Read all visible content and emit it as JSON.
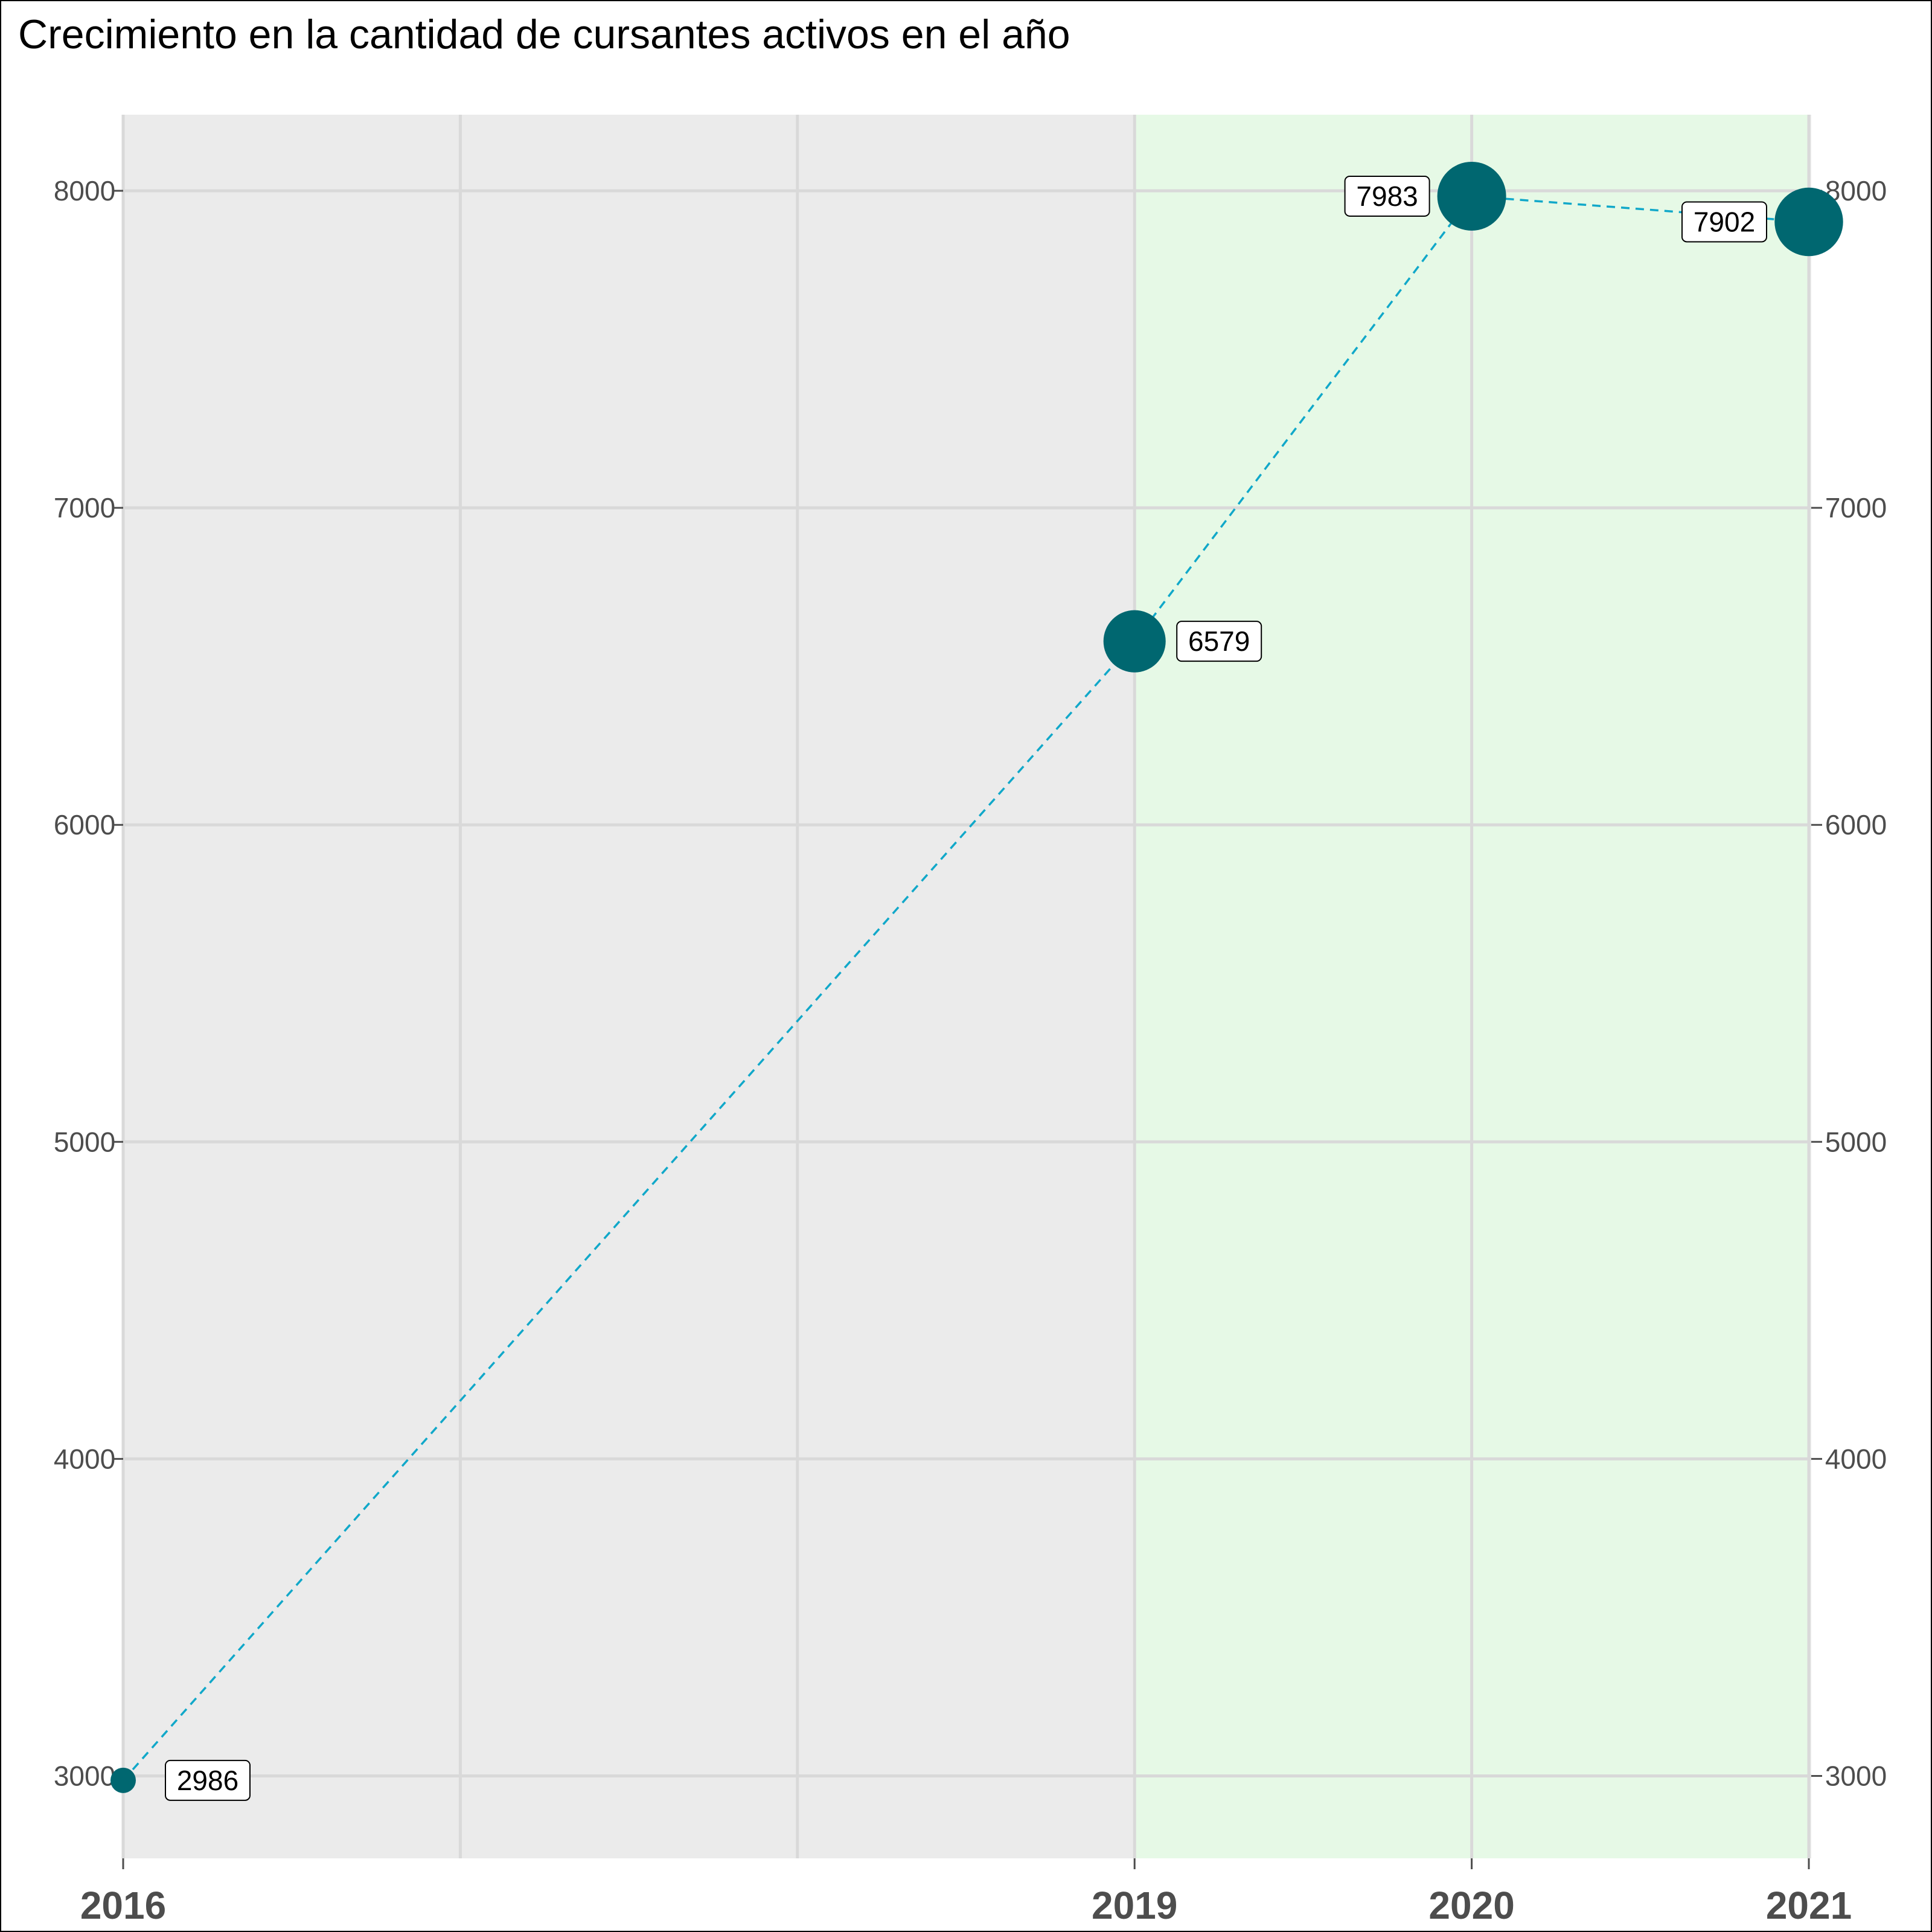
{
  "title": "Crecimiento en la cantidad de cursantes activos en el año",
  "colors": {
    "panel_background": "#ebebeb",
    "highlight_band": "#e6f9e6",
    "gridline": "#d9d9d9",
    "line": "#11a8c9",
    "point": "#006770"
  },
  "chart_data": {
    "type": "scatter",
    "title": "Crecimiento en la cantidad de cursantes activos en el año",
    "xlabel": "",
    "ylabel": "",
    "x": [
      2016,
      2019,
      2020,
      2021
    ],
    "values": [
      2986,
      6579,
      7983,
      7902
    ],
    "data_labels": [
      "2986",
      "6579",
      "7983",
      "7902"
    ],
    "connecting_line": "dashed",
    "point_size": "increases with value",
    "x_tick_labels": [
      "2016",
      "2019",
      "2020",
      "2021"
    ],
    "y_ticks": [
      3000,
      4000,
      5000,
      6000,
      7000,
      8000
    ],
    "y_tick_labels": [
      "3000",
      "4000",
      "5000",
      "6000",
      "7000",
      "8000"
    ],
    "y_axis_sides": "both",
    "highlight_range_x": [
      2019,
      2021
    ],
    "xlim": [
      2016,
      2021
    ],
    "ylim": [
      2740,
      8240
    ],
    "grid": true,
    "legend": "none"
  }
}
